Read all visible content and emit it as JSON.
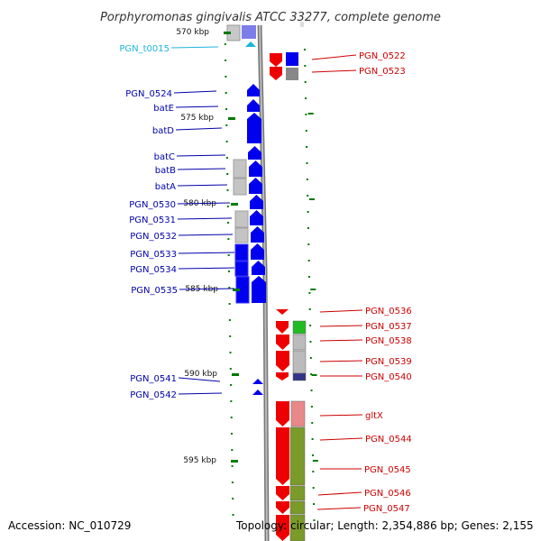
{
  "title": "Porphyromonas gingivalis ATCC 33277, complete genome",
  "footer": {
    "accession": "Accession: NC_010729",
    "topology": "Topology: circular; Length: 2,354,886 bp; Genes: 2,155"
  },
  "colors": {
    "left_label": "#0000aa",
    "right_label": "#cc0000",
    "rna_label": "#1fb5d9",
    "tick": "#007a00",
    "backbone": "#888888",
    "blue": "#0000ee",
    "red": "#ee0000"
  },
  "scale_labels": [
    "570 kbp",
    "575 kbp",
    "580 kbp",
    "585 kbp",
    "590 kbp",
    "595 kbp"
  ],
  "left_labels": [
    "PGN_t0015",
    "PGN_0524",
    "batE",
    "batD",
    "batC",
    "batB",
    "batA",
    "PGN_0530",
    "PGN_0531",
    "PGN_0532",
    "PGN_0533",
    "PGN_0534",
    "PGN_0535",
    "PGN_0541",
    "PGN_0542"
  ],
  "right_labels": [
    "PGN_0522",
    "PGN_0523",
    "PGN_0536",
    "PGN_0537",
    "PGN_0538",
    "PGN_0539",
    "PGN_0540",
    "gltX",
    "PGN_0544",
    "PGN_0545",
    "PGN_0546",
    "PGN_0547"
  ]
}
